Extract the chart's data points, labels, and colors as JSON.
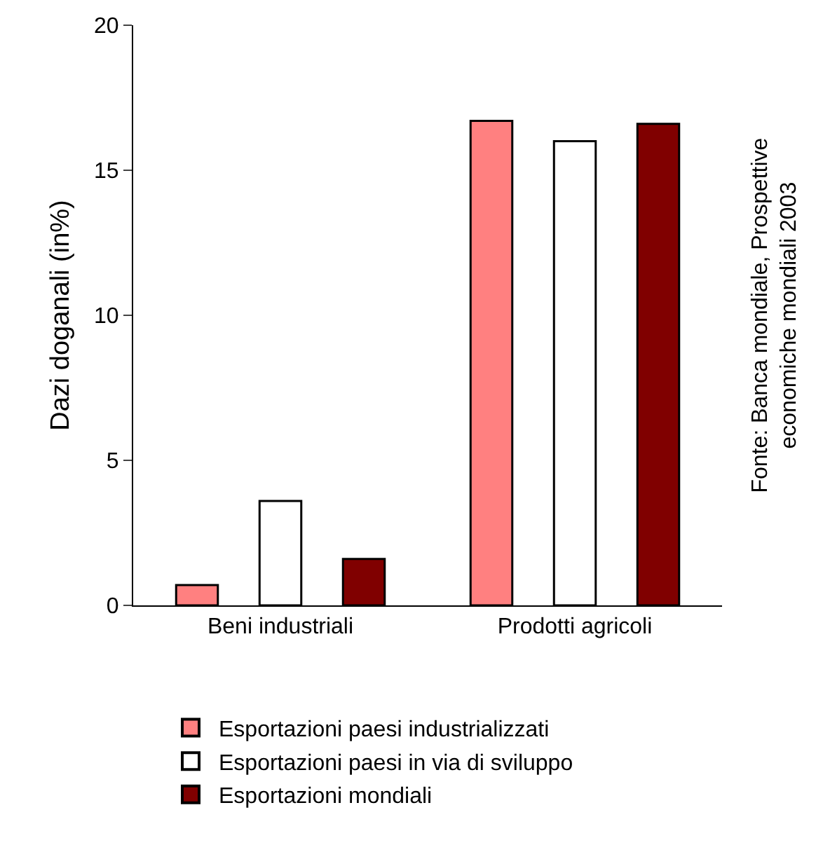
{
  "chart_data": {
    "type": "bar",
    "categories": [
      "Beni industriali",
      "Prodotti agricoli"
    ],
    "ylabel": "Dazi doganali (in%)",
    "series": [
      {
        "name": "Esportazioni paesi industrializzati",
        "color": "#ff8080",
        "values": [
          0.7,
          16.7
        ]
      },
      {
        "name": "Esportazioni paesi in via di sviluppo",
        "color": "#ffffff",
        "values": [
          3.6,
          16.0
        ]
      },
      {
        "name": "Esportazioni mondiali",
        "color": "#800000",
        "values": [
          1.6,
          16.6
        ]
      }
    ],
    "ylim": [
      0,
      20
    ],
    "yticks": [
      0,
      5,
      10,
      15,
      20
    ],
    "legend": "bottom",
    "annotations": [
      "Fonte: Banca mondiale, Prospettive\neconomiche mondiali 2003"
    ]
  }
}
